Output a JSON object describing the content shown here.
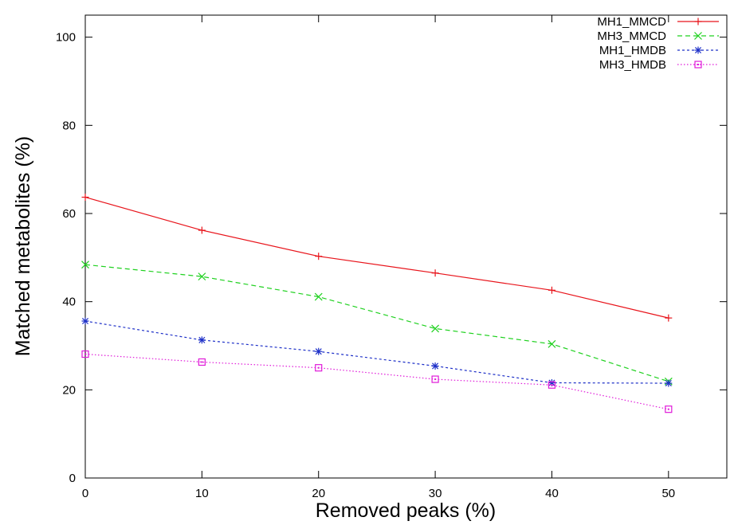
{
  "chart_data": {
    "type": "line",
    "title": "",
    "xlabel": "Removed peaks (%)",
    "ylabel": "Matched metabolites (%)",
    "xlim": [
      0,
      55
    ],
    "ylim": [
      0,
      105
    ],
    "x_ticks": [
      0,
      10,
      20,
      30,
      40,
      50
    ],
    "y_ticks": [
      0,
      20,
      40,
      60,
      80,
      100
    ],
    "x": [
      0,
      10,
      20,
      30,
      40,
      50
    ],
    "grid": false,
    "legend_position": "top-right",
    "series": [
      {
        "name": "MH1_MMCD",
        "values": [
          63.7,
          56.2,
          50.3,
          46.5,
          42.6,
          36.3
        ],
        "color": "#e8141b",
        "dash": "",
        "marker": "plus"
      },
      {
        "name": "MH3_MMCD",
        "values": [
          48.4,
          45.7,
          41.1,
          33.9,
          30.4,
          21.9
        ],
        "color": "#1fd11f",
        "dash": "6 4",
        "marker": "cross"
      },
      {
        "name": "MH1_HMDB",
        "values": [
          35.6,
          31.3,
          28.7,
          25.4,
          21.6,
          21.5
        ],
        "color": "#1e30c8",
        "dash": "3 3",
        "marker": "star"
      },
      {
        "name": "MH3_HMDB",
        "values": [
          28.1,
          26.3,
          25.0,
          22.4,
          21.1,
          15.6
        ],
        "color": "#e01bd9",
        "dash": "1.5 2.5",
        "marker": "box"
      }
    ]
  }
}
